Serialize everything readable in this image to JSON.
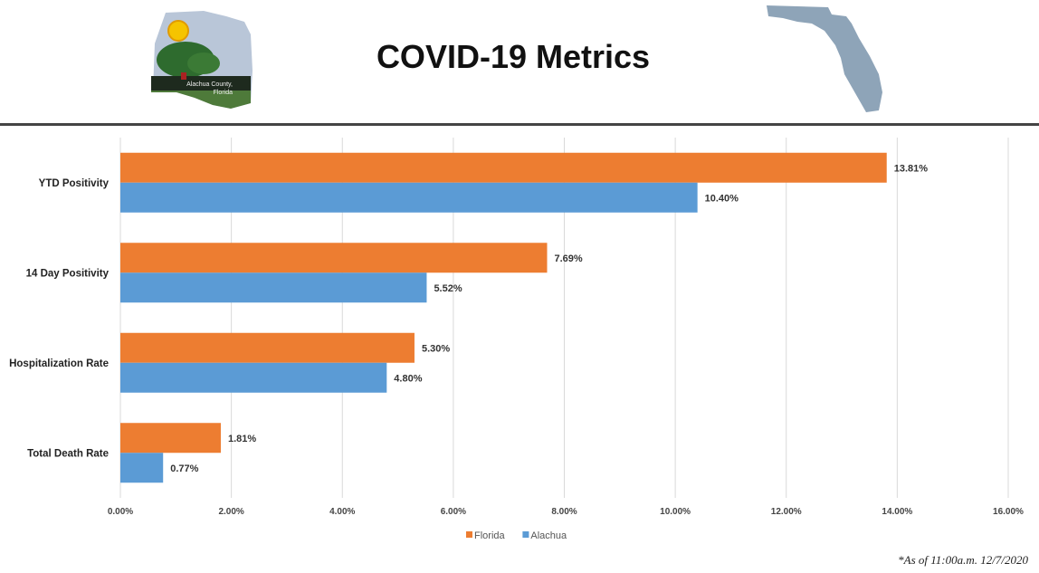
{
  "header": {
    "title": "COVID-19 Metrics",
    "logo_text": "Alachua County, Florida"
  },
  "footnote": "*As of 11:00a.m. 12/7/2020",
  "chart_data": {
    "type": "bar",
    "orientation": "horizontal",
    "categories": [
      "YTD Positivity",
      "14 Day Positivity",
      "Hospitalization Rate",
      "Total Death Rate"
    ],
    "series": [
      {
        "name": "Florida",
        "color": "#ED7D31",
        "values": [
          13.81,
          7.69,
          5.3,
          1.81
        ],
        "labels": [
          "13.81%",
          "7.69%",
          "5.30%",
          "1.81%"
        ]
      },
      {
        "name": "Alachua",
        "color": "#5B9BD5",
        "values": [
          10.4,
          5.52,
          4.8,
          0.77
        ],
        "labels": [
          "10.40%",
          "5.52%",
          "4.80%",
          "0.77%"
        ]
      }
    ],
    "xlim": [
      0,
      16
    ],
    "x_ticks": [
      "0.00%",
      "2.00%",
      "4.00%",
      "6.00%",
      "8.00%",
      "10.00%",
      "12.00%",
      "14.00%",
      "16.00%"
    ],
    "grid": true,
    "legend": "bottom"
  }
}
